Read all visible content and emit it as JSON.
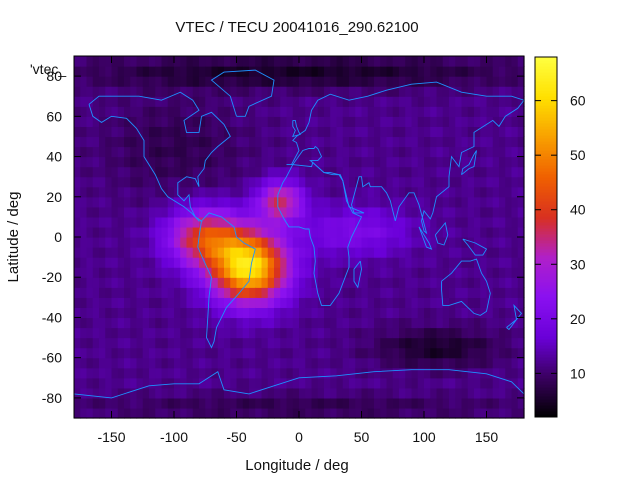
{
  "chart_data": {
    "type": "heatmap",
    "title": "VTEC / TECU 20041016_290.62100",
    "xlabel": "Longitude / deg",
    "ylabel": "Latitude / deg",
    "xlim": [
      -180,
      180
    ],
    "ylim": [
      -90,
      90
    ],
    "x_ticks": [
      -150,
      -100,
      -50,
      0,
      50,
      100,
      150
    ],
    "y_ticks": [
      -80,
      -60,
      -40,
      -20,
      0,
      20,
      40,
      60,
      80
    ],
    "x_tick_labels": [
      "-150",
      "-100",
      "-50",
      "0",
      "50",
      "100",
      "150"
    ],
    "y_tick_labels": [
      "-80",
      "-60",
      "-40",
      "-20",
      "0",
      "20",
      "40",
      "60",
      "80"
    ],
    "colorbar": {
      "range": [
        2,
        68
      ],
      "ticks": [
        10,
        20,
        30,
        40,
        50,
        60
      ],
      "tick_labels": [
        "10",
        "20",
        "30",
        "40",
        "50",
        "60"
      ],
      "colormap": [
        "#000000",
        "#3a0060",
        "#6a00d8",
        "#8a10f0",
        "#b020c8",
        "#d83020",
        "#f06000",
        "#f8a000",
        "#ffe000",
        "#ffff40"
      ]
    },
    "legend_key": "'vtec_",
    "grid": false,
    "background_level": 12,
    "blobs": [
      {
        "lon": -40,
        "lat": -15,
        "slon": 30,
        "slat": 17,
        "amp": 50
      },
      {
        "lon": -75,
        "lat": 0,
        "slon": 30,
        "slat": 14,
        "amp": 28
      },
      {
        "lon": -15,
        "lat": 18,
        "slon": 18,
        "slat": 10,
        "amp": 24
      },
      {
        "lon": 45,
        "lat": 3,
        "slon": 45,
        "slat": 12,
        "amp": 9
      },
      {
        "lon": -100,
        "lat": 45,
        "slon": 60,
        "slat": 25,
        "amp": -4
      },
      {
        "lon": 110,
        "lat": -55,
        "slon": 50,
        "slat": 10,
        "amp": -7
      },
      {
        "lon": 0,
        "lat": 82,
        "slon": 180,
        "slat": 8,
        "amp": -7
      },
      {
        "lon": 0,
        "lat": -84,
        "slon": 180,
        "slat": 6,
        "amp": -4
      }
    ],
    "coastlines": [
      [
        [
          -168,
          66
        ],
        [
          -160,
          70
        ],
        [
          -140,
          70
        ],
        [
          -128,
          70
        ],
        [
          -110,
          68
        ],
        [
          -95,
          72
        ],
        [
          -85,
          68
        ],
        [
          -80,
          63
        ],
        [
          -92,
          58
        ],
        [
          -90,
          52
        ],
        [
          -80,
          52
        ],
        [
          -78,
          60
        ],
        [
          -70,
          62
        ],
        [
          -60,
          56
        ],
        [
          -55,
          50
        ],
        [
          -65,
          45
        ],
        [
          -70,
          42
        ],
        [
          -75,
          38
        ],
        [
          -76,
          34
        ],
        [
          -81,
          30
        ],
        [
          -80,
          25
        ],
        [
          -83,
          29
        ],
        [
          -90,
          30
        ],
        [
          -97,
          27
        ],
        [
          -97,
          21
        ],
        [
          -92,
          18
        ],
        [
          -88,
          21
        ],
        [
          -87,
          15
        ],
        [
          -83,
          10
        ],
        [
          -78,
          8
        ],
        [
          -80,
          8
        ],
        [
          -86,
          12
        ],
        [
          -92,
          15
        ],
        [
          -105,
          20
        ],
        [
          -110,
          24
        ],
        [
          -115,
          31
        ],
        [
          -118,
          34
        ],
        [
          -124,
          40
        ],
        [
          -124,
          48
        ],
        [
          -130,
          54
        ],
        [
          -138,
          59
        ],
        [
          -150,
          60
        ],
        [
          -158,
          57
        ],
        [
          -165,
          60
        ],
        [
          -168,
          66
        ]
      ],
      [
        [
          -78,
          8
        ],
        [
          -72,
          12
        ],
        [
          -62,
          10
        ],
        [
          -52,
          5
        ],
        [
          -50,
          0
        ],
        [
          -44,
          -3
        ],
        [
          -35,
          -6
        ],
        [
          -38,
          -13
        ],
        [
          -40,
          -22
        ],
        [
          -48,
          -28
        ],
        [
          -58,
          -35
        ],
        [
          -62,
          -40
        ],
        [
          -66,
          -45
        ],
        [
          -68,
          -52
        ],
        [
          -70,
          -55
        ],
        [
          -74,
          -50
        ],
        [
          -73,
          -40
        ],
        [
          -72,
          -30
        ],
        [
          -70,
          -20
        ],
        [
          -76,
          -12
        ],
        [
          -81,
          -5
        ],
        [
          -80,
          0
        ],
        [
          -78,
          8
        ]
      ],
      [
        [
          -50,
          60
        ],
        [
          -43,
          60
        ],
        [
          -40,
          65
        ],
        [
          -22,
          70
        ],
        [
          -20,
          78
        ],
        [
          -35,
          83
        ],
        [
          -60,
          82
        ],
        [
          -70,
          78
        ],
        [
          -55,
          70
        ],
        [
          -50,
          60
        ]
      ],
      [
        [
          -10,
          36
        ],
        [
          -6,
          36
        ],
        [
          0,
          43
        ],
        [
          -2,
          47
        ],
        [
          -5,
          48
        ],
        [
          -2,
          50
        ],
        [
          5,
          53
        ],
        [
          8,
          57
        ],
        [
          10,
          63
        ],
        [
          15,
          68
        ],
        [
          25,
          71
        ],
        [
          40,
          68
        ],
        [
          55,
          70
        ],
        [
          70,
          73
        ],
        [
          90,
          76
        ],
        [
          110,
          77
        ],
        [
          130,
          72
        ],
        [
          150,
          70
        ],
        [
          170,
          70
        ],
        [
          180,
          68
        ],
        [
          175,
          64
        ],
        [
          165,
          60
        ],
        [
          160,
          55
        ],
        [
          155,
          58
        ],
        [
          140,
          52
        ],
        [
          140,
          45
        ],
        [
          130,
          42
        ],
        [
          128,
          35
        ],
        [
          122,
          40
        ],
        [
          120,
          30
        ],
        [
          120,
          25
        ],
        [
          110,
          20
        ],
        [
          107,
          12
        ],
        [
          105,
          9
        ],
        [
          100,
          13
        ],
        [
          98,
          8
        ],
        [
          100,
          3
        ],
        [
          102,
          2
        ],
        [
          96,
          16
        ],
        [
          92,
          22
        ],
        [
          88,
          22
        ],
        [
          80,
          15
        ],
        [
          77,
          8
        ],
        [
          73,
          18
        ],
        [
          70,
          22
        ],
        [
          66,
          25
        ],
        [
          57,
          25
        ],
        [
          56,
          27
        ],
        [
          51,
          25
        ],
        [
          50,
          30
        ],
        [
          48,
          30
        ],
        [
          42,
          16
        ],
        [
          44,
          12
        ],
        [
          52,
          12
        ],
        [
          40,
          15
        ],
        [
          35,
          28
        ],
        [
          33,
          31
        ],
        [
          27,
          31
        ],
        [
          20,
          32
        ],
        [
          11,
          37
        ],
        [
          9,
          38
        ],
        [
          15,
          38
        ],
        [
          18,
          40
        ],
        [
          15,
          44
        ],
        [
          13,
          45
        ],
        [
          12,
          44
        ],
        [
          8,
          44
        ],
        [
          3,
          43
        ],
        [
          -5,
          36
        ],
        [
          -10,
          36
        ]
      ],
      [
        [
          -17,
          21
        ],
        [
          -17,
          15
        ],
        [
          -12,
          9
        ],
        [
          -8,
          5
        ],
        [
          0,
          5
        ],
        [
          5,
          4
        ],
        [
          8,
          4
        ],
        [
          9,
          0
        ],
        [
          12,
          -5
        ],
        [
          13,
          -12
        ],
        [
          12,
          -18
        ],
        [
          15,
          -28
        ],
        [
          18,
          -34
        ],
        [
          25,
          -34
        ],
        [
          32,
          -28
        ],
        [
          35,
          -23
        ],
        [
          40,
          -15
        ],
        [
          40,
          -10
        ],
        [
          39,
          -5
        ],
        [
          42,
          0
        ],
        [
          50,
          10
        ],
        [
          43,
          12
        ],
        [
          38,
          18
        ],
        [
          35,
          28
        ],
        [
          32,
          31
        ],
        [
          25,
          32
        ],
        [
          20,
          32
        ],
        [
          11,
          37
        ],
        [
          10,
          35
        ],
        [
          -5,
          36
        ],
        [
          -10,
          30
        ],
        [
          -13,
          27
        ],
        [
          -17,
          21
        ]
      ],
      [
        [
          114,
          -22
        ],
        [
          122,
          -18
        ],
        [
          130,
          -12
        ],
        [
          137,
          -12
        ],
        [
          142,
          -11
        ],
        [
          146,
          -18
        ],
        [
          150,
          -22
        ],
        [
          153,
          -28
        ],
        [
          150,
          -37
        ],
        [
          145,
          -39
        ],
        [
          140,
          -38
        ],
        [
          135,
          -35
        ],
        [
          130,
          -32
        ],
        [
          120,
          -34
        ],
        [
          115,
          -34
        ],
        [
          114,
          -26
        ],
        [
          114,
          -22
        ]
      ],
      [
        [
          -180,
          -78
        ],
        [
          -150,
          -80
        ],
        [
          -120,
          -74
        ],
        [
          -100,
          -73
        ],
        [
          -80,
          -73
        ],
        [
          -65,
          -67
        ],
        [
          -60,
          -76
        ],
        [
          -40,
          -78
        ],
        [
          -20,
          -74
        ],
        [
          0,
          -70
        ],
        [
          30,
          -69
        ],
        [
          60,
          -67
        ],
        [
          90,
          -66
        ],
        [
          120,
          -66
        ],
        [
          150,
          -68
        ],
        [
          170,
          -72
        ],
        [
          180,
          -78
        ]
      ],
      [
        [
          -5,
          58
        ],
        [
          -3,
          58
        ],
        [
          -2,
          55
        ],
        [
          0,
          52
        ],
        [
          1,
          51
        ],
        [
          -5,
          50
        ],
        [
          -3,
          53
        ],
        [
          -5,
          55
        ],
        [
          -5,
          58
        ]
      ],
      [
        [
          130,
          31
        ],
        [
          131,
          34
        ],
        [
          136,
          36
        ],
        [
          140,
          41
        ],
        [
          142,
          43
        ],
        [
          140,
          35
        ],
        [
          136,
          34
        ],
        [
          130,
          31
        ]
      ],
      [
        [
          96,
          5
        ],
        [
          104,
          -3
        ],
        [
          106,
          -6
        ],
        [
          102,
          -5
        ],
        [
          96,
          5
        ]
      ],
      [
        [
          109,
          1
        ],
        [
          117,
          7
        ],
        [
          119,
          1
        ],
        [
          116,
          -4
        ],
        [
          111,
          -3
        ],
        [
          109,
          1
        ]
      ],
      [
        [
          49,
          -12
        ],
        [
          50,
          -16
        ],
        [
          47,
          -25
        ],
        [
          44,
          -22
        ],
        [
          44,
          -16
        ],
        [
          49,
          -12
        ]
      ],
      [
        [
          166,
          -45
        ],
        [
          174,
          -41
        ],
        [
          178,
          -38
        ],
        [
          172,
          -34
        ],
        [
          174,
          -41
        ],
        [
          168,
          -46
        ],
        [
          166,
          -45
        ]
      ],
      [
        [
          131,
          -1
        ],
        [
          141,
          -3
        ],
        [
          150,
          -6
        ],
        [
          147,
          -9
        ],
        [
          141,
          -9
        ],
        [
          135,
          -4
        ],
        [
          131,
          -1
        ]
      ]
    ]
  }
}
